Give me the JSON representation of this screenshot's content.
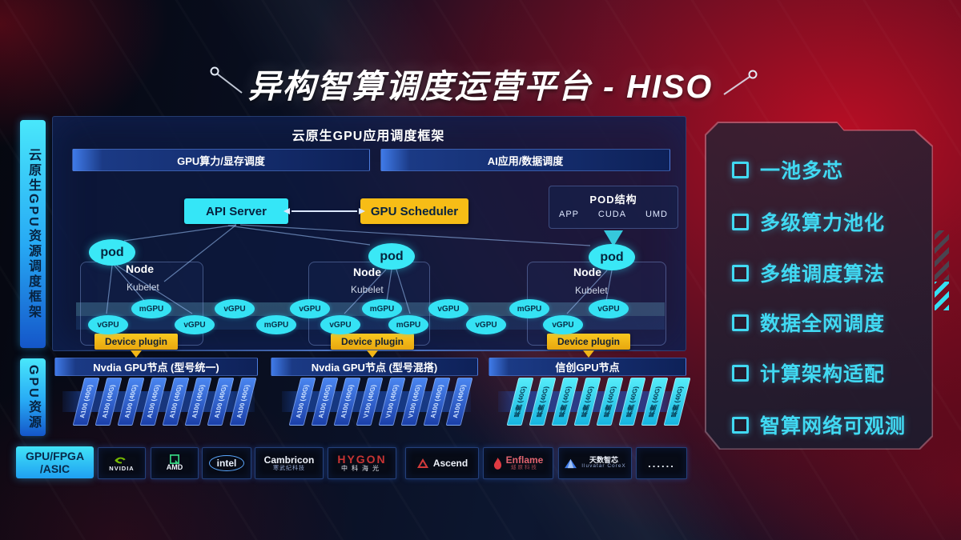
{
  "title": "异构智算调度运营平台 - HISO",
  "sidebar": {
    "framework_label": "云原生GPU资源调度框架",
    "resource_label": "GPU资源",
    "hardware_line1": "GPU/FPGA",
    "hardware_line2": "/ASIC"
  },
  "scheduling": {
    "header": "云原生GPU应用调度框架",
    "lanes": [
      "GPU算力/显存调度",
      "AI应用/数据调度"
    ],
    "api_server": "API Server",
    "gpu_scheduler": "GPU Scheduler",
    "pod_structure": {
      "title": "POD结构",
      "items": [
        "APP",
        "CUDA",
        "UMD"
      ]
    },
    "pod_label": "pod",
    "node_label": "Node",
    "kubelet_label": "Kubelet",
    "device_plugin_label": "Device plugin",
    "gpu_units": [
      "vGPU",
      "mGPU",
      "vGPU",
      "vGPU",
      "mGPU",
      "vGPU",
      "vGPU",
      "mGPU",
      "mGPU",
      "vGPU",
      "vGPU",
      "mGPU",
      "vGPU",
      "vGPU"
    ]
  },
  "resources": {
    "node_bars": [
      "Nvdia GPU节点 (型号统一)",
      "Nvdia GPU节点 (型号混搭)",
      "信创GPU节点"
    ],
    "stacks": [
      {
        "cards": [
          "A100 (40G)",
          "A100 (40G)",
          "A100 (40G)",
          "A100 (40G)",
          "A100 (40G)",
          "A100 (40G)",
          "A100 (40G)",
          "A100 (40G)"
        ]
      },
      {
        "cards": [
          "A100 (40G)",
          "A100 (40G)",
          "A100 (40G)",
          "V100 (40G)",
          "V100 (40G)",
          "V100 (40G)",
          "A100 (40G)",
          "A100 (40G)"
        ]
      },
      {
        "cards": [
          "昇腾 (40G)",
          "昇腾 (40G)",
          "昇腾 (40G)",
          "昇腾 (40G)",
          "昇腾 (40G)",
          "昇腾 (40G)",
          "昇腾 (40G)",
          "昇腾 (40G)"
        ]
      }
    ]
  },
  "vendors": [
    {
      "id": "nvidia",
      "label": "NVIDIA"
    },
    {
      "id": "amd",
      "label": "AMD"
    },
    {
      "id": "intel",
      "label": "intel"
    },
    {
      "id": "cambricon",
      "label": "Cambricon",
      "sub": "寒武纪科技"
    },
    {
      "id": "hygon",
      "label": "HYGON",
      "sub": "中科海光"
    },
    {
      "id": "ascend",
      "label": "Ascend"
    },
    {
      "id": "enflame",
      "label": "Enflame",
      "sub": "燧原科技"
    },
    {
      "id": "iluvatar",
      "label": "天数智芯",
      "sub": "Iluvatar CoreX"
    },
    {
      "id": "more",
      "label": "......"
    }
  ],
  "features": [
    "一池多芯",
    "多级算力池化",
    "多维调度算法",
    "数据全网调度",
    "计算架构适配",
    "智算网络可观测"
  ],
  "colors": {
    "accent_cyan": "#35e2f4",
    "accent_yellow": "#f7bd16",
    "card_blue": "#2b62d9",
    "red_glow": "#c10e24"
  }
}
